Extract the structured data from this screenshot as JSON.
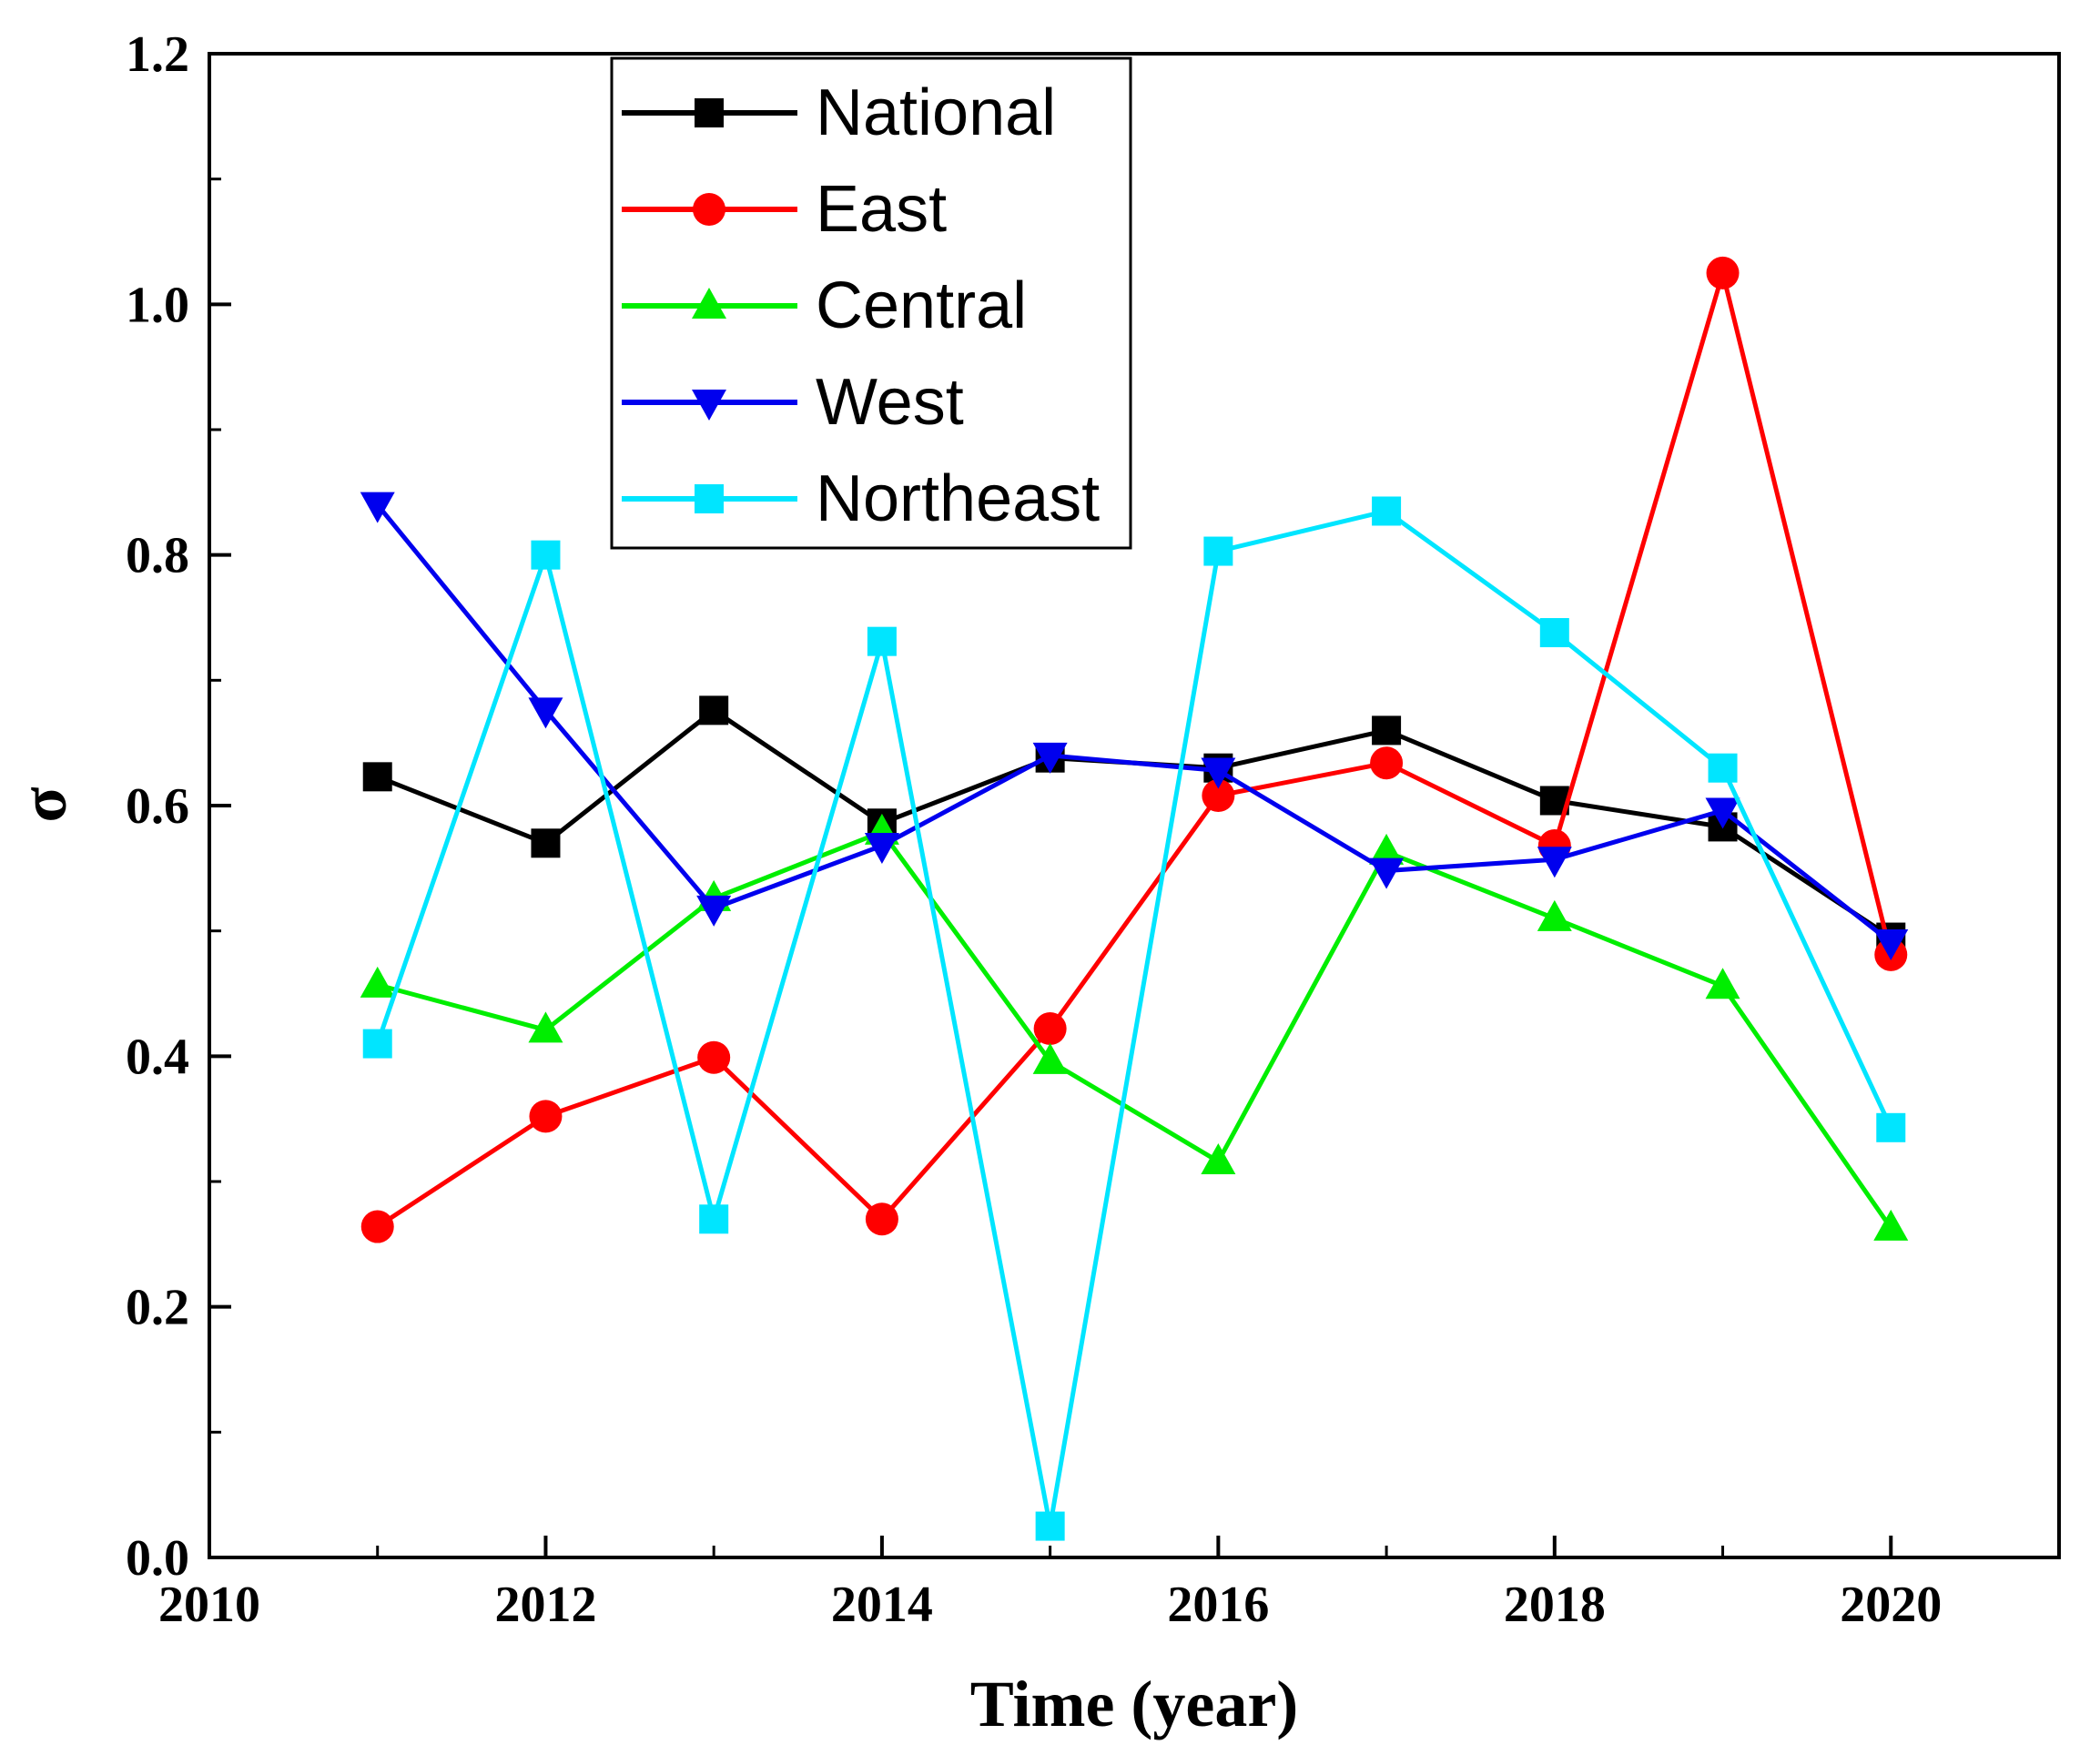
{
  "chart_data": {
    "type": "line",
    "title": "",
    "xlabel": "Time (year)",
    "ylabel": "σ",
    "xlim": [
      2010,
      2021
    ],
    "ylim": [
      0.0,
      1.2
    ],
    "xticks": [
      2010,
      2012,
      2014,
      2016,
      2018,
      2020
    ],
    "xtick_labels": [
      "2010",
      "2012",
      "2014",
      "2016",
      "2018",
      "2020"
    ],
    "yticks": [
      0.0,
      0.2,
      0.4,
      0.6,
      0.8,
      1.0,
      1.2
    ],
    "ytick_labels": [
      "0.0",
      "0.2",
      "0.4",
      "0.6",
      "0.8",
      "1.0",
      "1.2"
    ],
    "grid": false,
    "legend_position": "top-center",
    "x": [
      2011,
      2012,
      2013,
      2014,
      2015,
      2016,
      2017,
      2018,
      2019,
      2020
    ],
    "series": [
      {
        "name": "National",
        "color": "#000000",
        "marker": "square",
        "values": [
          0.623,
          0.57,
          0.676,
          0.586,
          0.638,
          0.63,
          0.66,
          0.604,
          0.583,
          0.495
        ]
      },
      {
        "name": "East",
        "color": "#ff0000",
        "marker": "circle",
        "values": [
          0.264,
          0.352,
          0.399,
          0.27,
          0.422,
          0.608,
          0.634,
          0.568,
          1.025,
          0.481
        ]
      },
      {
        "name": "Central",
        "color": "#00ee00",
        "marker": "triangle-up",
        "values": [
          0.457,
          0.421,
          0.526,
          0.579,
          0.396,
          0.316,
          0.563,
          0.51,
          0.456,
          0.263
        ]
      },
      {
        "name": "West",
        "color": "#0000ee",
        "marker": "triangle-down",
        "values": [
          0.84,
          0.676,
          0.518,
          0.568,
          0.64,
          0.628,
          0.548,
          0.557,
          0.596,
          0.491
        ]
      },
      {
        "name": "Northeast",
        "color": "#00e5ff",
        "marker": "square",
        "values": [
          0.41,
          0.8,
          0.27,
          0.731,
          0.025,
          0.803,
          0.835,
          0.738,
          0.63,
          0.343
        ]
      }
    ]
  }
}
